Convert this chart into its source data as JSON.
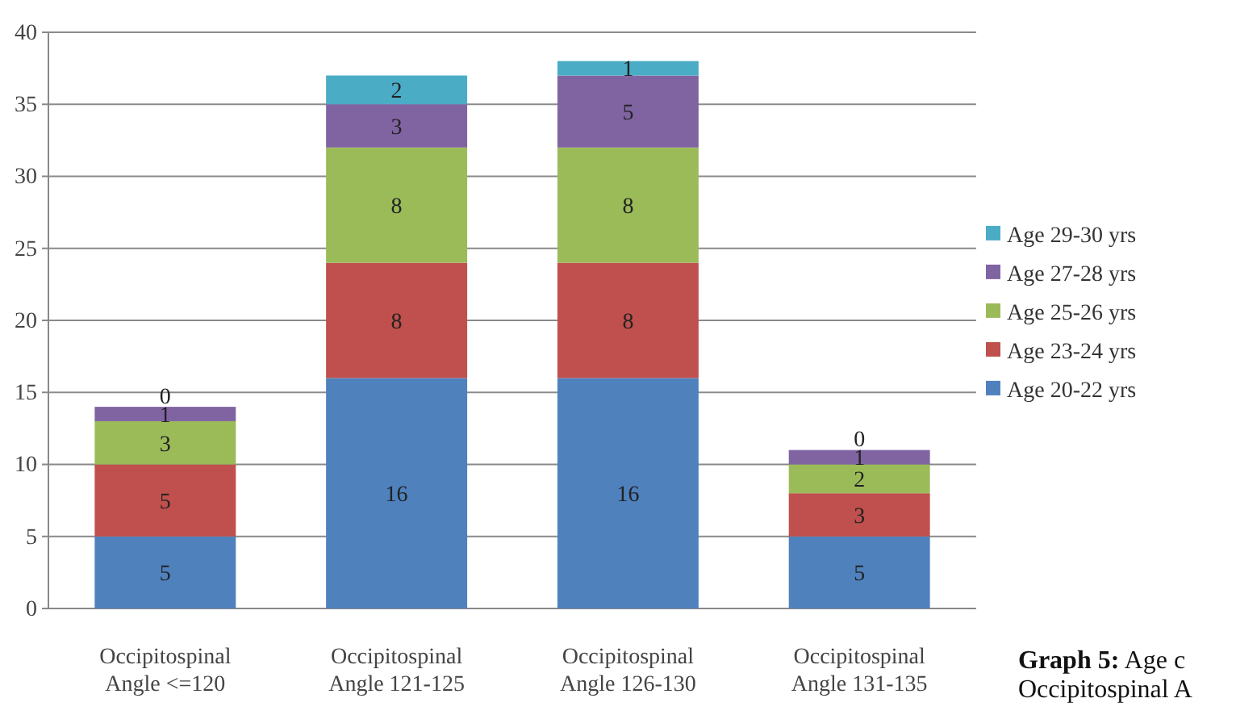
{
  "chart_data": {
    "type": "bar",
    "stacked": true,
    "categories": [
      "Occipitospinal Angle <=120",
      "Occipitospinal Angle 121-125",
      "Occipitospinal Angle 126-130",
      "Occipitospinal Angle 131-135"
    ],
    "series": [
      {
        "name": "Age 20-22 yrs",
        "color": "#4f81bd",
        "values": [
          5,
          16,
          16,
          5
        ]
      },
      {
        "name": "Age 23-24 yrs",
        "color": "#c0504d",
        "values": [
          5,
          8,
          8,
          3
        ]
      },
      {
        "name": "Age 25-26 yrs",
        "color": "#9bbb59",
        "values": [
          3,
          8,
          8,
          2
        ]
      },
      {
        "name": "Age 27-28 yrs",
        "color": "#8064a2",
        "values": [
          1,
          3,
          5,
          1
        ]
      },
      {
        "name": "Age 29-30 yrs",
        "color": "#4bacc6",
        "values": [
          0,
          2,
          1,
          0
        ]
      }
    ],
    "ylim": [
      0,
      40
    ],
    "yticks": [
      0,
      5,
      10,
      15,
      20,
      25,
      30,
      35,
      40
    ],
    "grid": "y",
    "legend": "right",
    "data_labels": true,
    "annotations": [
      "Graph 5: Age c",
      "Occipitospinal A"
    ]
  }
}
